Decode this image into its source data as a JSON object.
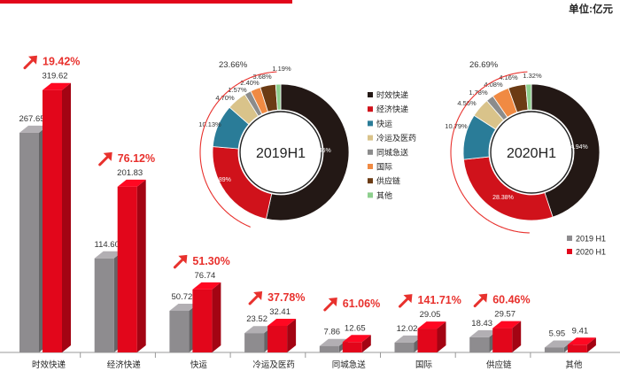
{
  "unit_label": "单位:亿元",
  "colors": {
    "bar_2019": "#8e8c8f",
    "bar_2020": "#e2061b",
    "growth": "#e8312d",
    "segments": [
      "#231815",
      "#d0121b",
      "#2a7c98",
      "#d9c38a",
      "#8c8c8c",
      "#f08a43",
      "#6b3b14",
      "#8dcf8d"
    ]
  },
  "legend_years": [
    "2019 H1",
    "2020 H1"
  ],
  "chart_data": [
    {
      "type": "bar",
      "categories": [
        "时效快递",
        "经济快递",
        "快运",
        "冷运及医药",
        "同城急送",
        "国际",
        "供应链",
        "其他"
      ],
      "series": [
        {
          "name": "2019 H1",
          "values": [
            267.65,
            114.6,
            50.72,
            23.52,
            7.86,
            12.02,
            18.43,
            5.95
          ],
          "labels": [
            "267.65",
            "114.60",
            "50.72",
            "23.52",
            "7.86",
            "12.02",
            "18.43",
            "5.95"
          ]
        },
        {
          "name": "2020 H1",
          "values": [
            319.62,
            201.83,
            76.74,
            32.41,
            12.65,
            29.05,
            29.57,
            9.41
          ],
          "labels": [
            "319.62",
            "201.83",
            "76.74",
            "32.41",
            "12.65",
            "29.05",
            "29.57",
            "9.41"
          ]
        }
      ],
      "growth": [
        "19.42%",
        "76.12%",
        "51.30%",
        "37.78%",
        "61.06%",
        "141.71%",
        "60.46%",
        ""
      ],
      "ylim": [
        0,
        350
      ]
    },
    {
      "type": "pie",
      "center_label": "2019H1",
      "labels": [
        "时效快递",
        "经济快递",
        "快运",
        "冷运及医药",
        "同城急送",
        "国际",
        "供应链",
        "其他"
      ],
      "values": [
        53.45,
        22.89,
        10.13,
        4.7,
        1.57,
        2.4,
        3.68,
        1.19
      ],
      "value_labels": [
        "53.45%",
        "22.89%",
        "10.13%",
        "4.70%",
        "1.57%",
        "2.40%",
        "3.68%",
        "1.19%"
      ],
      "group_label": "23.66%"
    },
    {
      "type": "pie",
      "center_label": "2020H1",
      "labels": [
        "时效快递",
        "经济快递",
        "快运",
        "冷运及医药",
        "同城急送",
        "国际",
        "供应链",
        "其他"
      ],
      "values": [
        44.94,
        28.38,
        10.79,
        4.56,
        1.78,
        4.08,
        4.16,
        1.32
      ],
      "value_labels": [
        "44.94%",
        "28.38%",
        "10.79%",
        "4.56%",
        "1.78%",
        "4.08%",
        "4.16%",
        "1.32%"
      ],
      "group_label": "26.69%"
    }
  ]
}
